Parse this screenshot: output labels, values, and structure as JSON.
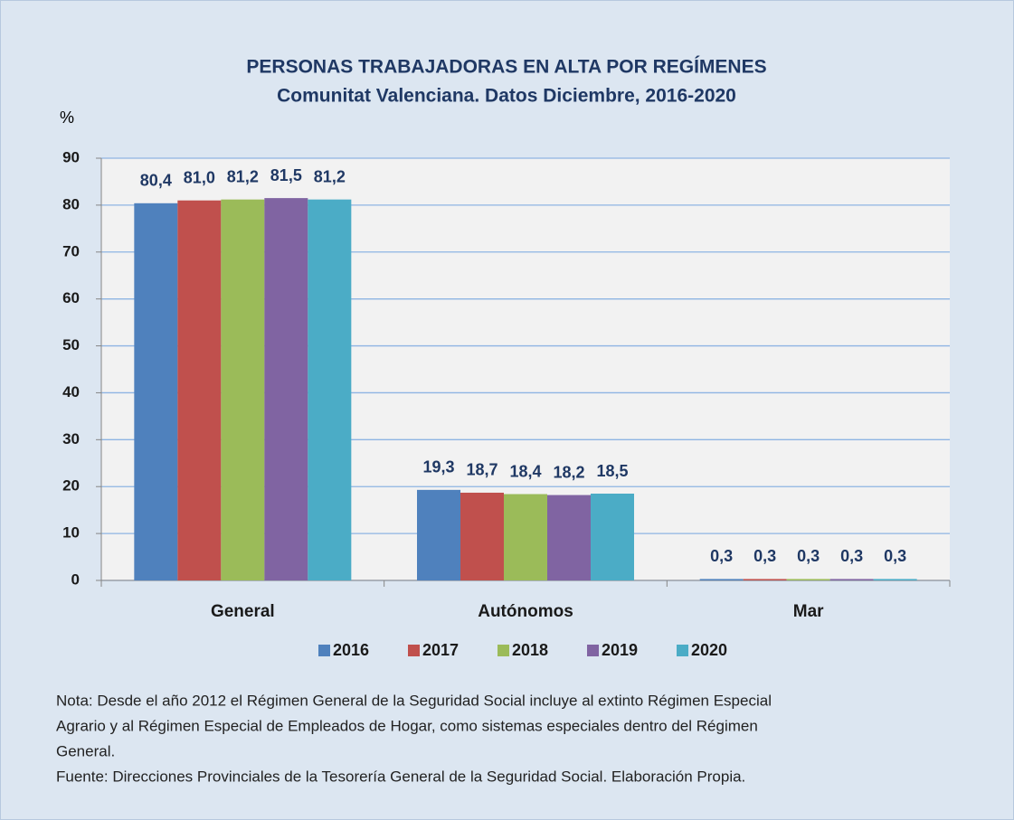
{
  "chart_data": {
    "type": "bar",
    "title": "PERSONAS TRABAJADORAS EN ALTA POR REGÍMENES",
    "subtitle": "Comunitat Valenciana. Datos Diciembre, 2016-2020",
    "y_label": "%",
    "categories": [
      "General",
      "Autónomos",
      "Mar"
    ],
    "series": [
      {
        "name": "2016",
        "color": "#4f81bd",
        "values": [
          80.4,
          19.3,
          0.3
        ],
        "value_labels": [
          "80,4",
          "19,3",
          "0,3"
        ]
      },
      {
        "name": "2017",
        "color": "#c0504d",
        "values": [
          81.0,
          18.7,
          0.3
        ],
        "value_labels": [
          "81,0",
          "18,7",
          "0,3"
        ]
      },
      {
        "name": "2018",
        "color": "#9bbb59",
        "values": [
          81.2,
          18.4,
          0.3
        ],
        "value_labels": [
          "81,2",
          "18,4",
          "0,3"
        ]
      },
      {
        "name": "2019",
        "color": "#8064a2",
        "values": [
          81.5,
          18.2,
          0.3
        ],
        "value_labels": [
          "81,5",
          "18,2",
          "0,3"
        ]
      },
      {
        "name": "2020",
        "color": "#4bacc6",
        "values": [
          81.2,
          18.5,
          0.3
        ],
        "value_labels": [
          "81,2",
          "18,5",
          "0,3"
        ]
      }
    ],
    "ylim": [
      0,
      90
    ],
    "yticks": [
      0,
      10,
      20,
      30,
      40,
      50,
      60,
      70,
      80,
      90
    ],
    "grid": true,
    "legend": "bottom",
    "notes": [
      "Nota: Desde el año 2012 el Régimen General de la Seguridad Social incluye al extinto Régimen Especial",
      "Agrario y al Régimen Especial de Empleados de Hogar, como sistemas especiales dentro del Régimen",
      "General.",
      "Fuente: Direcciones Provinciales de la Tesorería General de la Seguridad Social. Elaboración Propia."
    ]
  }
}
